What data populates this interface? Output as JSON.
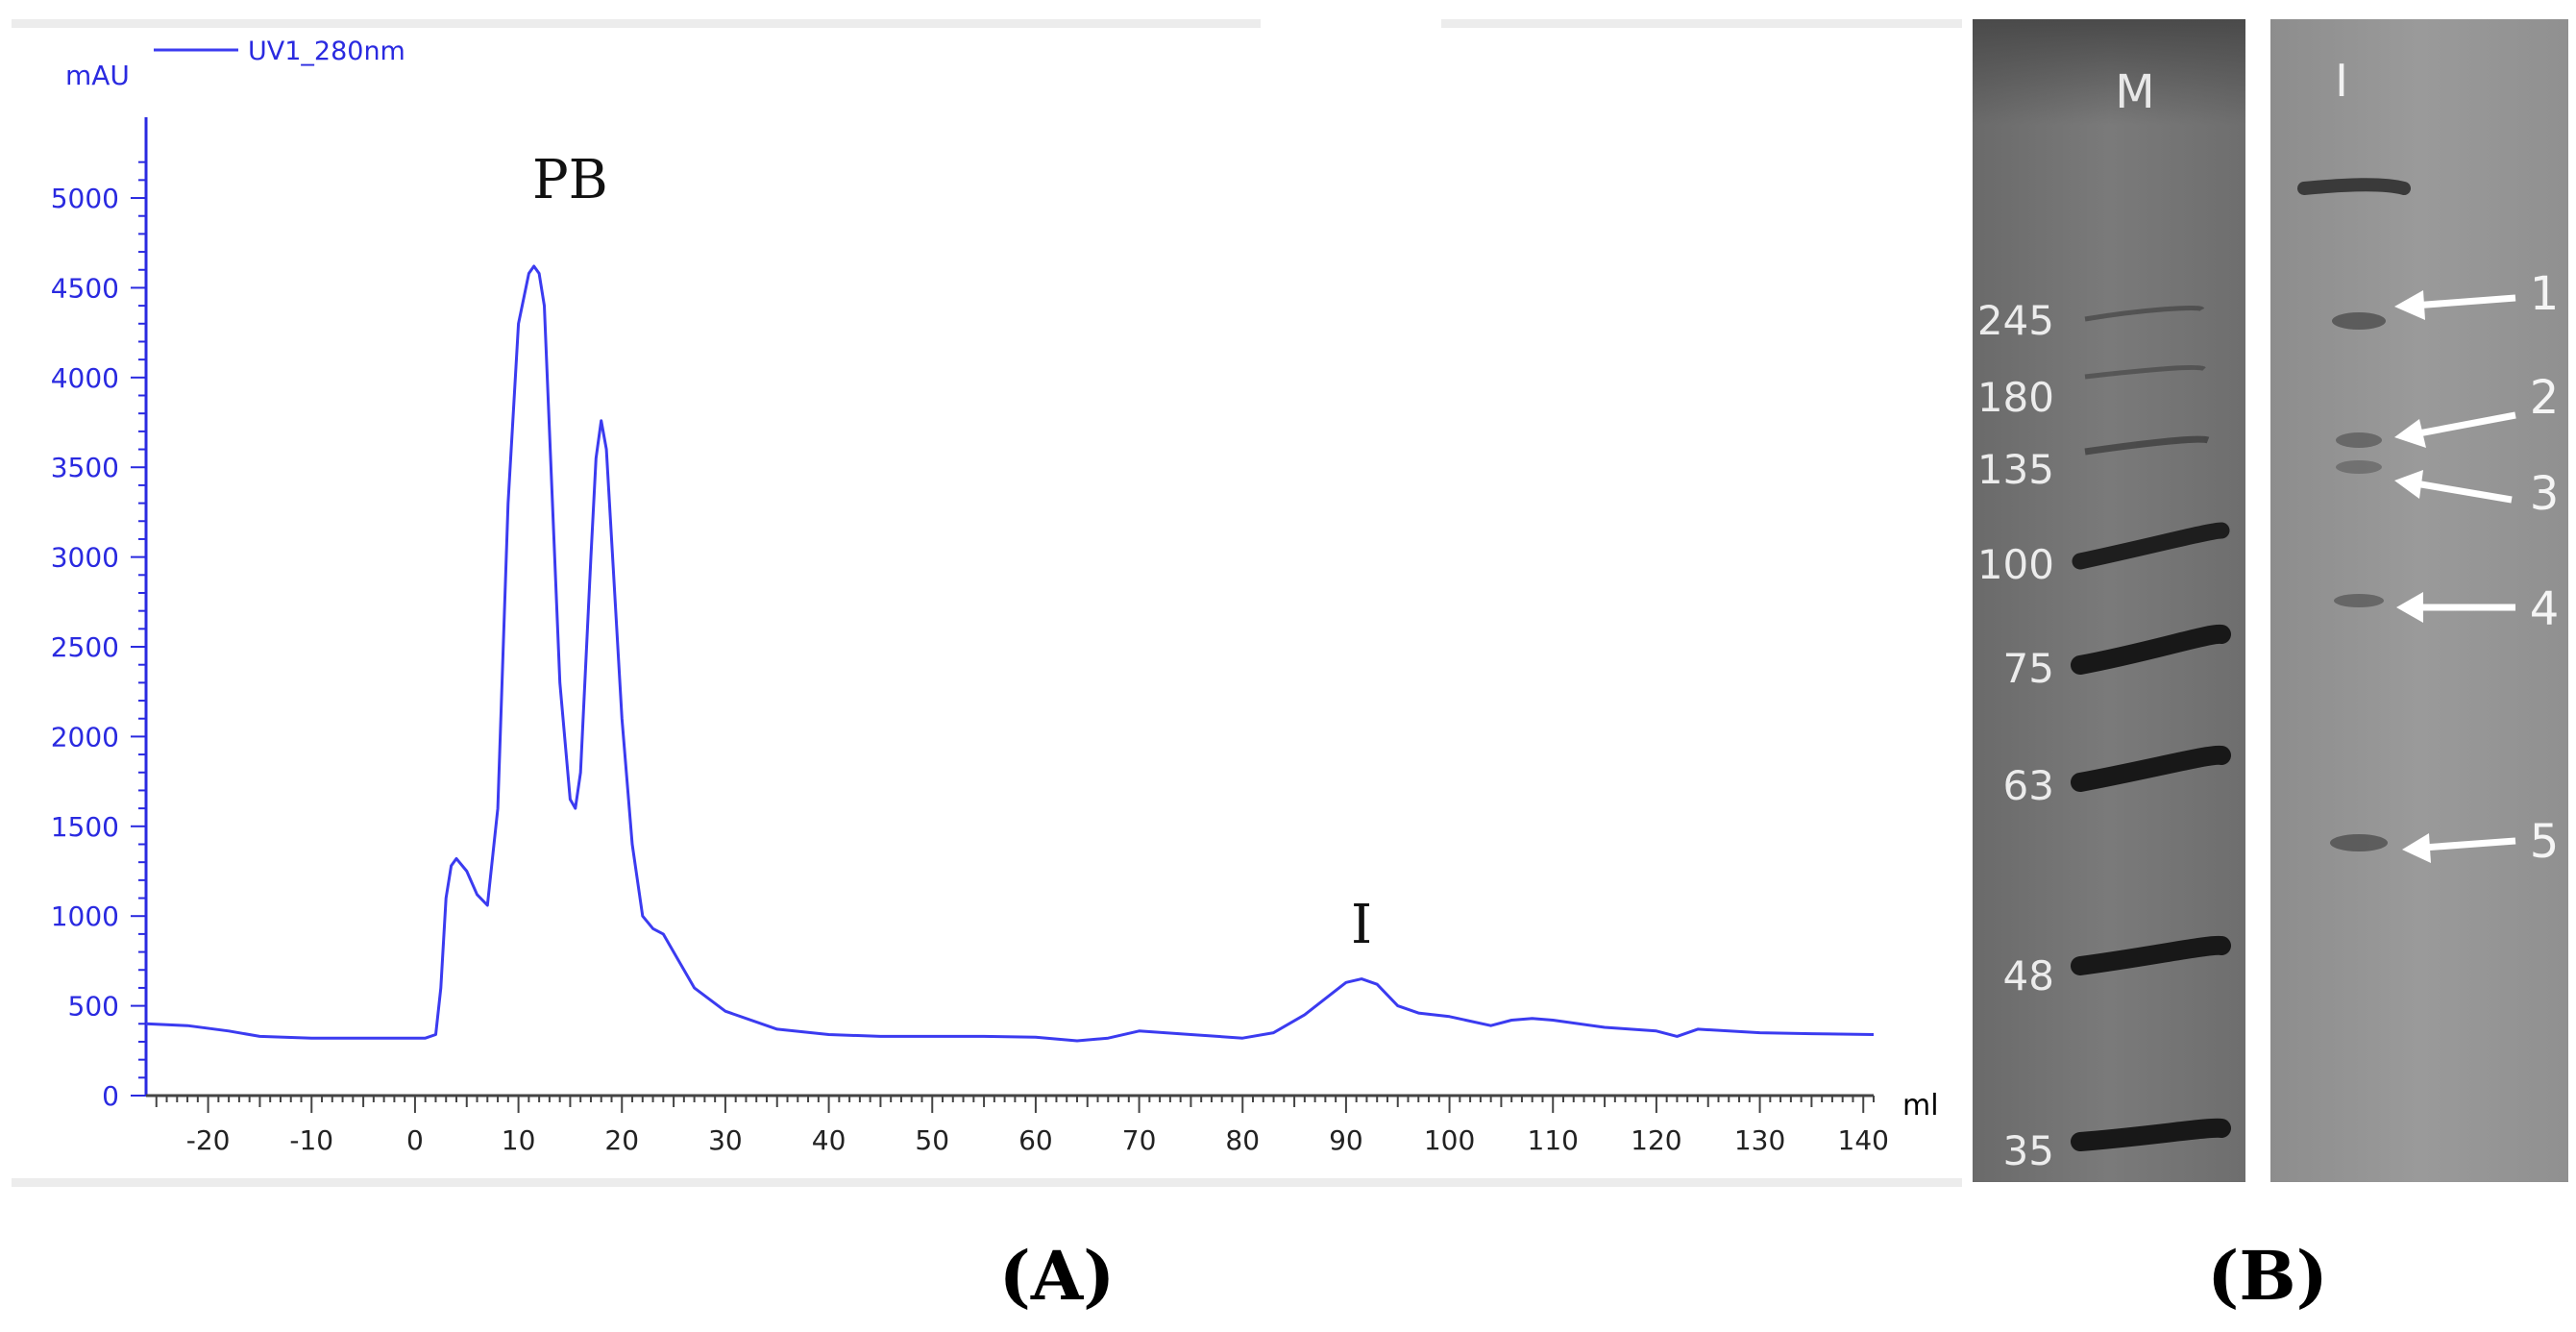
{
  "chart_data": {
    "type": "line",
    "legend": "UV1_280nm",
    "ylabel": "mAU",
    "xlabel": "ml",
    "xlim": [
      -26,
      141
    ],
    "ylim": [
      0,
      5300
    ],
    "xticks": [
      -20,
      -10,
      0,
      10,
      20,
      30,
      40,
      50,
      60,
      70,
      80,
      90,
      100,
      110,
      120,
      130,
      140
    ],
    "yticks": [
      0,
      500,
      1000,
      1500,
      2000,
      2500,
      3000,
      3500,
      4000,
      4500,
      5000
    ],
    "series": [
      {
        "name": "UV1_280nm",
        "color": "#3b3bf0",
        "x": [
          -26,
          -22,
          -18,
          -15,
          -10,
          -5,
          0,
          1,
          2,
          2.5,
          3,
          3.5,
          4,
          5,
          6,
          7,
          8,
          9,
          10,
          11,
          11.5,
          12,
          12.5,
          13,
          14,
          15,
          15.5,
          16,
          17,
          17.5,
          18,
          18.5,
          19,
          20,
          21,
          22,
          23,
          24,
          25,
          27,
          30,
          35,
          40,
          45,
          50,
          55,
          60,
          64,
          67,
          70,
          75,
          80,
          83,
          86,
          88,
          90,
          91.5,
          93,
          95,
          97,
          100,
          104,
          106,
          108,
          110,
          115,
          120,
          122,
          124,
          130,
          135,
          141
        ],
        "y": [
          400,
          390,
          360,
          330,
          320,
          320,
          320,
          320,
          340,
          600,
          1100,
          1280,
          1320,
          1250,
          1120,
          1060,
          1600,
          3300,
          4300,
          4580,
          4620,
          4580,
          4400,
          3700,
          2300,
          1650,
          1600,
          1800,
          3000,
          3550,
          3760,
          3600,
          3100,
          2100,
          1400,
          1000,
          930,
          900,
          800,
          600,
          470,
          370,
          340,
          330,
          330,
          330,
          325,
          305,
          320,
          360,
          340,
          320,
          350,
          450,
          540,
          630,
          650,
          620,
          500,
          460,
          440,
          390,
          420,
          430,
          420,
          380,
          360,
          330,
          370,
          350,
          345,
          340
        ]
      }
    ],
    "annotations": [
      {
        "text": "PB",
        "x": 15,
        "y": 5000
      },
      {
        "text": "I",
        "x": 91.5,
        "y": 850
      }
    ]
  },
  "gel": {
    "marker_lane_label": "M",
    "sample_lane_label": "I",
    "marker_sizes": [
      "245",
      "180",
      "135",
      "100",
      "75",
      "63",
      "48",
      "35"
    ],
    "band_labels": [
      "1",
      "2",
      "3",
      "4",
      "5"
    ]
  },
  "panel_labels": {
    "a": "(A)",
    "b": "(B)"
  }
}
